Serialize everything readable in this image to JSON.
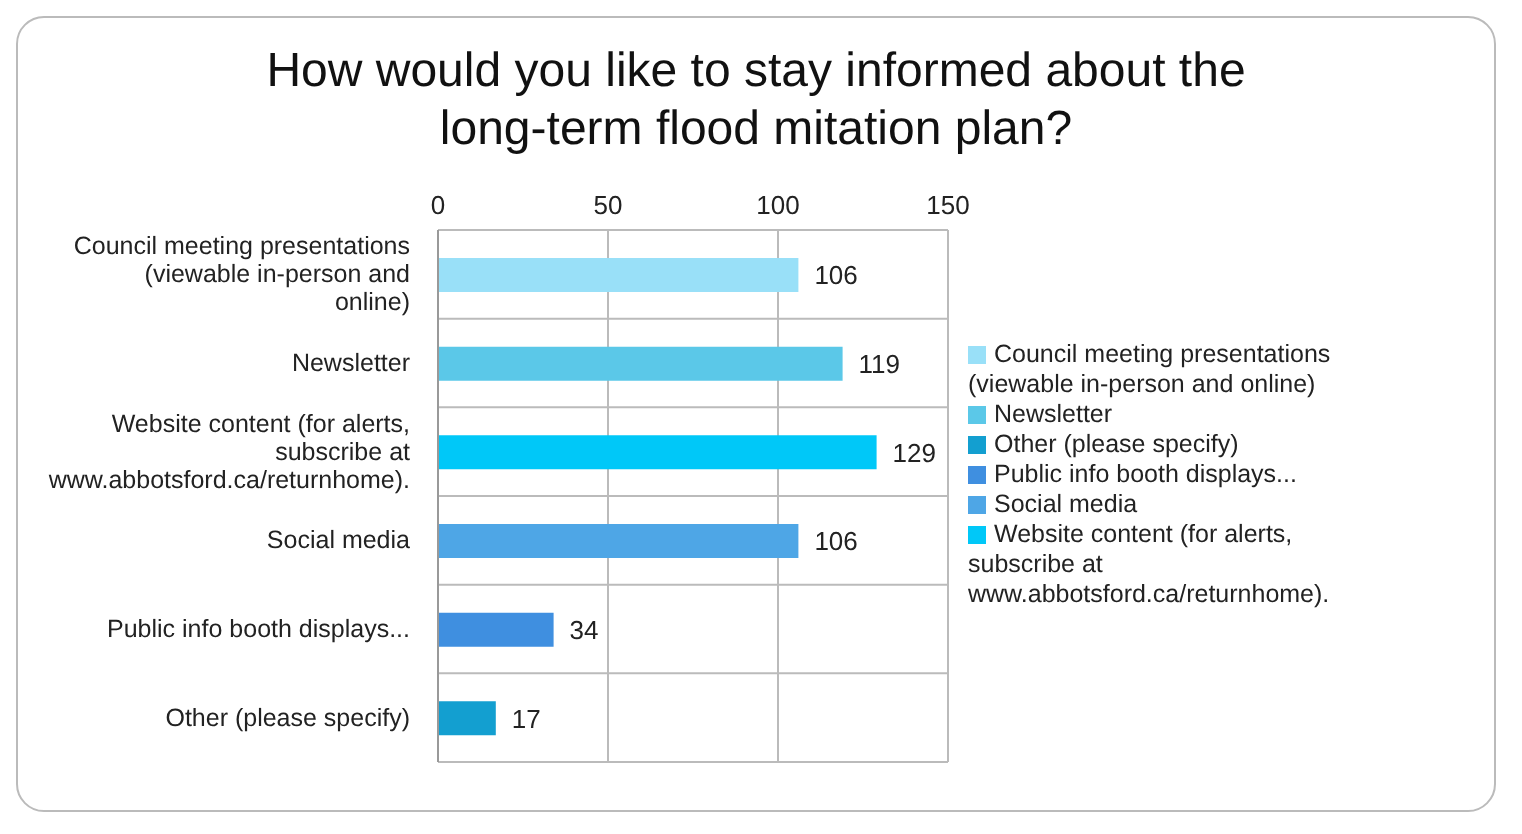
{
  "chart_data": {
    "type": "bar",
    "orientation": "horizontal",
    "stacked": true,
    "title": "How would you like to stay informed about the long-term flood mitation plan?",
    "categories": [
      "Council meeting presentations (viewable in-person and online)",
      "Newsletter",
      "Website content (for alerts, subscribe at www.abbotsford.ca/returnhome).",
      "Social media",
      "Public info booth displays...",
      "Other (please specify)"
    ],
    "series": [
      {
        "name": "Council meeting presentations (viewable in-person and online)",
        "color": "#99e0f8",
        "values": [
          106,
          null,
          null,
          null,
          null,
          null
        ]
      },
      {
        "name": "Newsletter",
        "color": "#5bc8e8",
        "values": [
          null,
          119,
          null,
          null,
          null,
          null
        ]
      },
      {
        "name": "Website content (for alerts, subscribe at www.abbotsford.ca/returnhome).",
        "color": "#00c8f8",
        "values": [
          null,
          null,
          129,
          null,
          null,
          null
        ]
      },
      {
        "name": "Social media",
        "color": "#4ea6e6",
        "values": [
          null,
          null,
          null,
          106,
          null,
          null
        ]
      },
      {
        "name": "Public info booth displays...",
        "color": "#3f8fe0",
        "values": [
          null,
          null,
          null,
          null,
          34,
          null
        ]
      },
      {
        "name": "Other (please specify)",
        "color": "#139fd0",
        "values": [
          null,
          null,
          null,
          null,
          null,
          17
        ]
      }
    ],
    "xlim": [
      0,
      150
    ],
    "xticks": [
      0,
      50,
      100,
      150
    ],
    "grid": true,
    "data_labels": true,
    "legend": "right"
  }
}
